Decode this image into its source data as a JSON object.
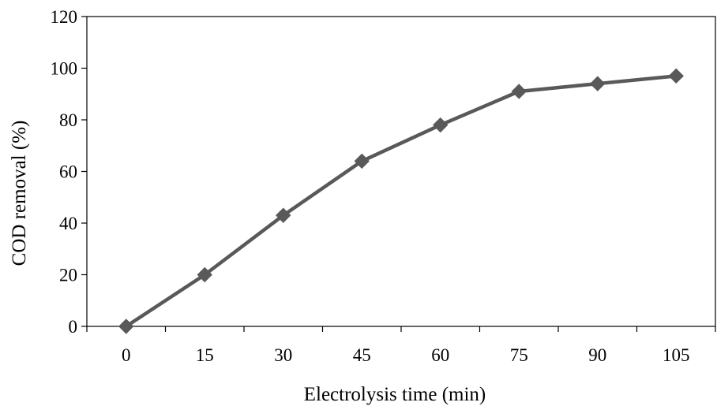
{
  "chart_data": {
    "type": "line",
    "title": "",
    "xlabel": "Electrolysis time (min)",
    "ylabel": "COD removal (%)",
    "categories": [
      "0",
      "15",
      "30",
      "45",
      "60",
      "75",
      "90",
      "105"
    ],
    "x": [
      0,
      15,
      30,
      45,
      60,
      75,
      90,
      105
    ],
    "series": [
      {
        "values": [
          0,
          20,
          43,
          64,
          78,
          91,
          94,
          97
        ],
        "color": "#595959",
        "marker": "diamond"
      }
    ],
    "ylim": [
      0,
      120
    ],
    "yticks": [
      0,
      20,
      40,
      60,
      80,
      100,
      120
    ],
    "grid": false,
    "legend": "none"
  }
}
